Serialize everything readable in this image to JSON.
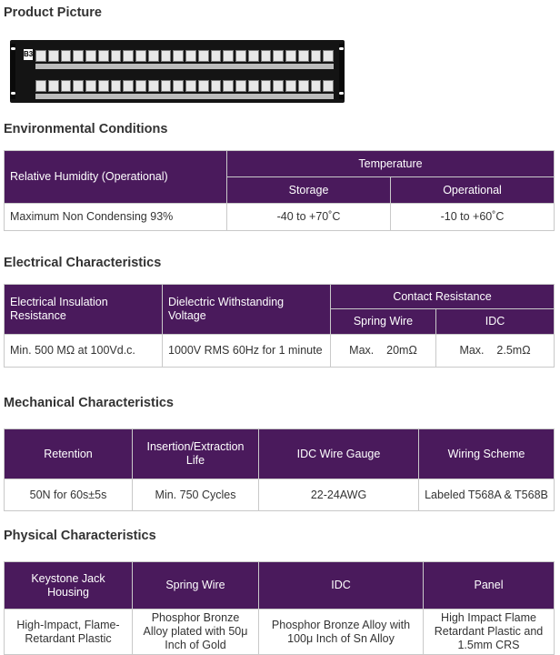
{
  "product": {
    "title": "Product Picture"
  },
  "environmental": {
    "title": "Environmental Conditions",
    "humidity_header": "Relative Humidity (Operational)",
    "temperature_header": "Temperature",
    "storage_header": "Storage",
    "operational_header": "Operational",
    "humidity_value": "Maximum Non Condensing 93%",
    "storage_value": "-40 to +70˚C",
    "operational_value": "-10 to +60˚C"
  },
  "electrical": {
    "title": "Electrical Characteristics",
    "insulation_header": "Electrical Insulation Resistance",
    "dielectric_header": "Dielectric Withstanding Voltage",
    "contact_header": "Contact Resistance",
    "spring_header": "Spring Wire",
    "idc_header": "IDC",
    "insulation_value": "Min. 500 MΩ at 100Vd.c.",
    "dielectric_value": "1000V RMS 60Hz for 1 minute",
    "spring_value": "Max.    20mΩ",
    "idc_value": "Max.    2.5mΩ"
  },
  "mechanical": {
    "title": "Mechanical Characteristics",
    "headers": [
      "Retention",
      "Insertion/Extraction Life",
      "IDC Wire Gauge",
      "Wiring Scheme"
    ],
    "values": [
      "50N for 60s±5s",
      "Min. 750 Cycles",
      "22-24AWG",
      "Labeled T568A & T568B"
    ]
  },
  "physical": {
    "title": "Physical Characteristics",
    "headers": [
      "Keystone Jack Housing",
      "Spring Wire",
      "IDC",
      "Panel"
    ],
    "values": [
      "High-Impact, Flame-Retardant Plastic",
      "Phosphor Bronze Alloy plated with 50μ Inch of Gold",
      "Phosphor Bronze Alloy with 100μ Inch of Sn Alloy",
      "High Impact Flame Retardant Plastic and 1.5mm CRS"
    ]
  }
}
